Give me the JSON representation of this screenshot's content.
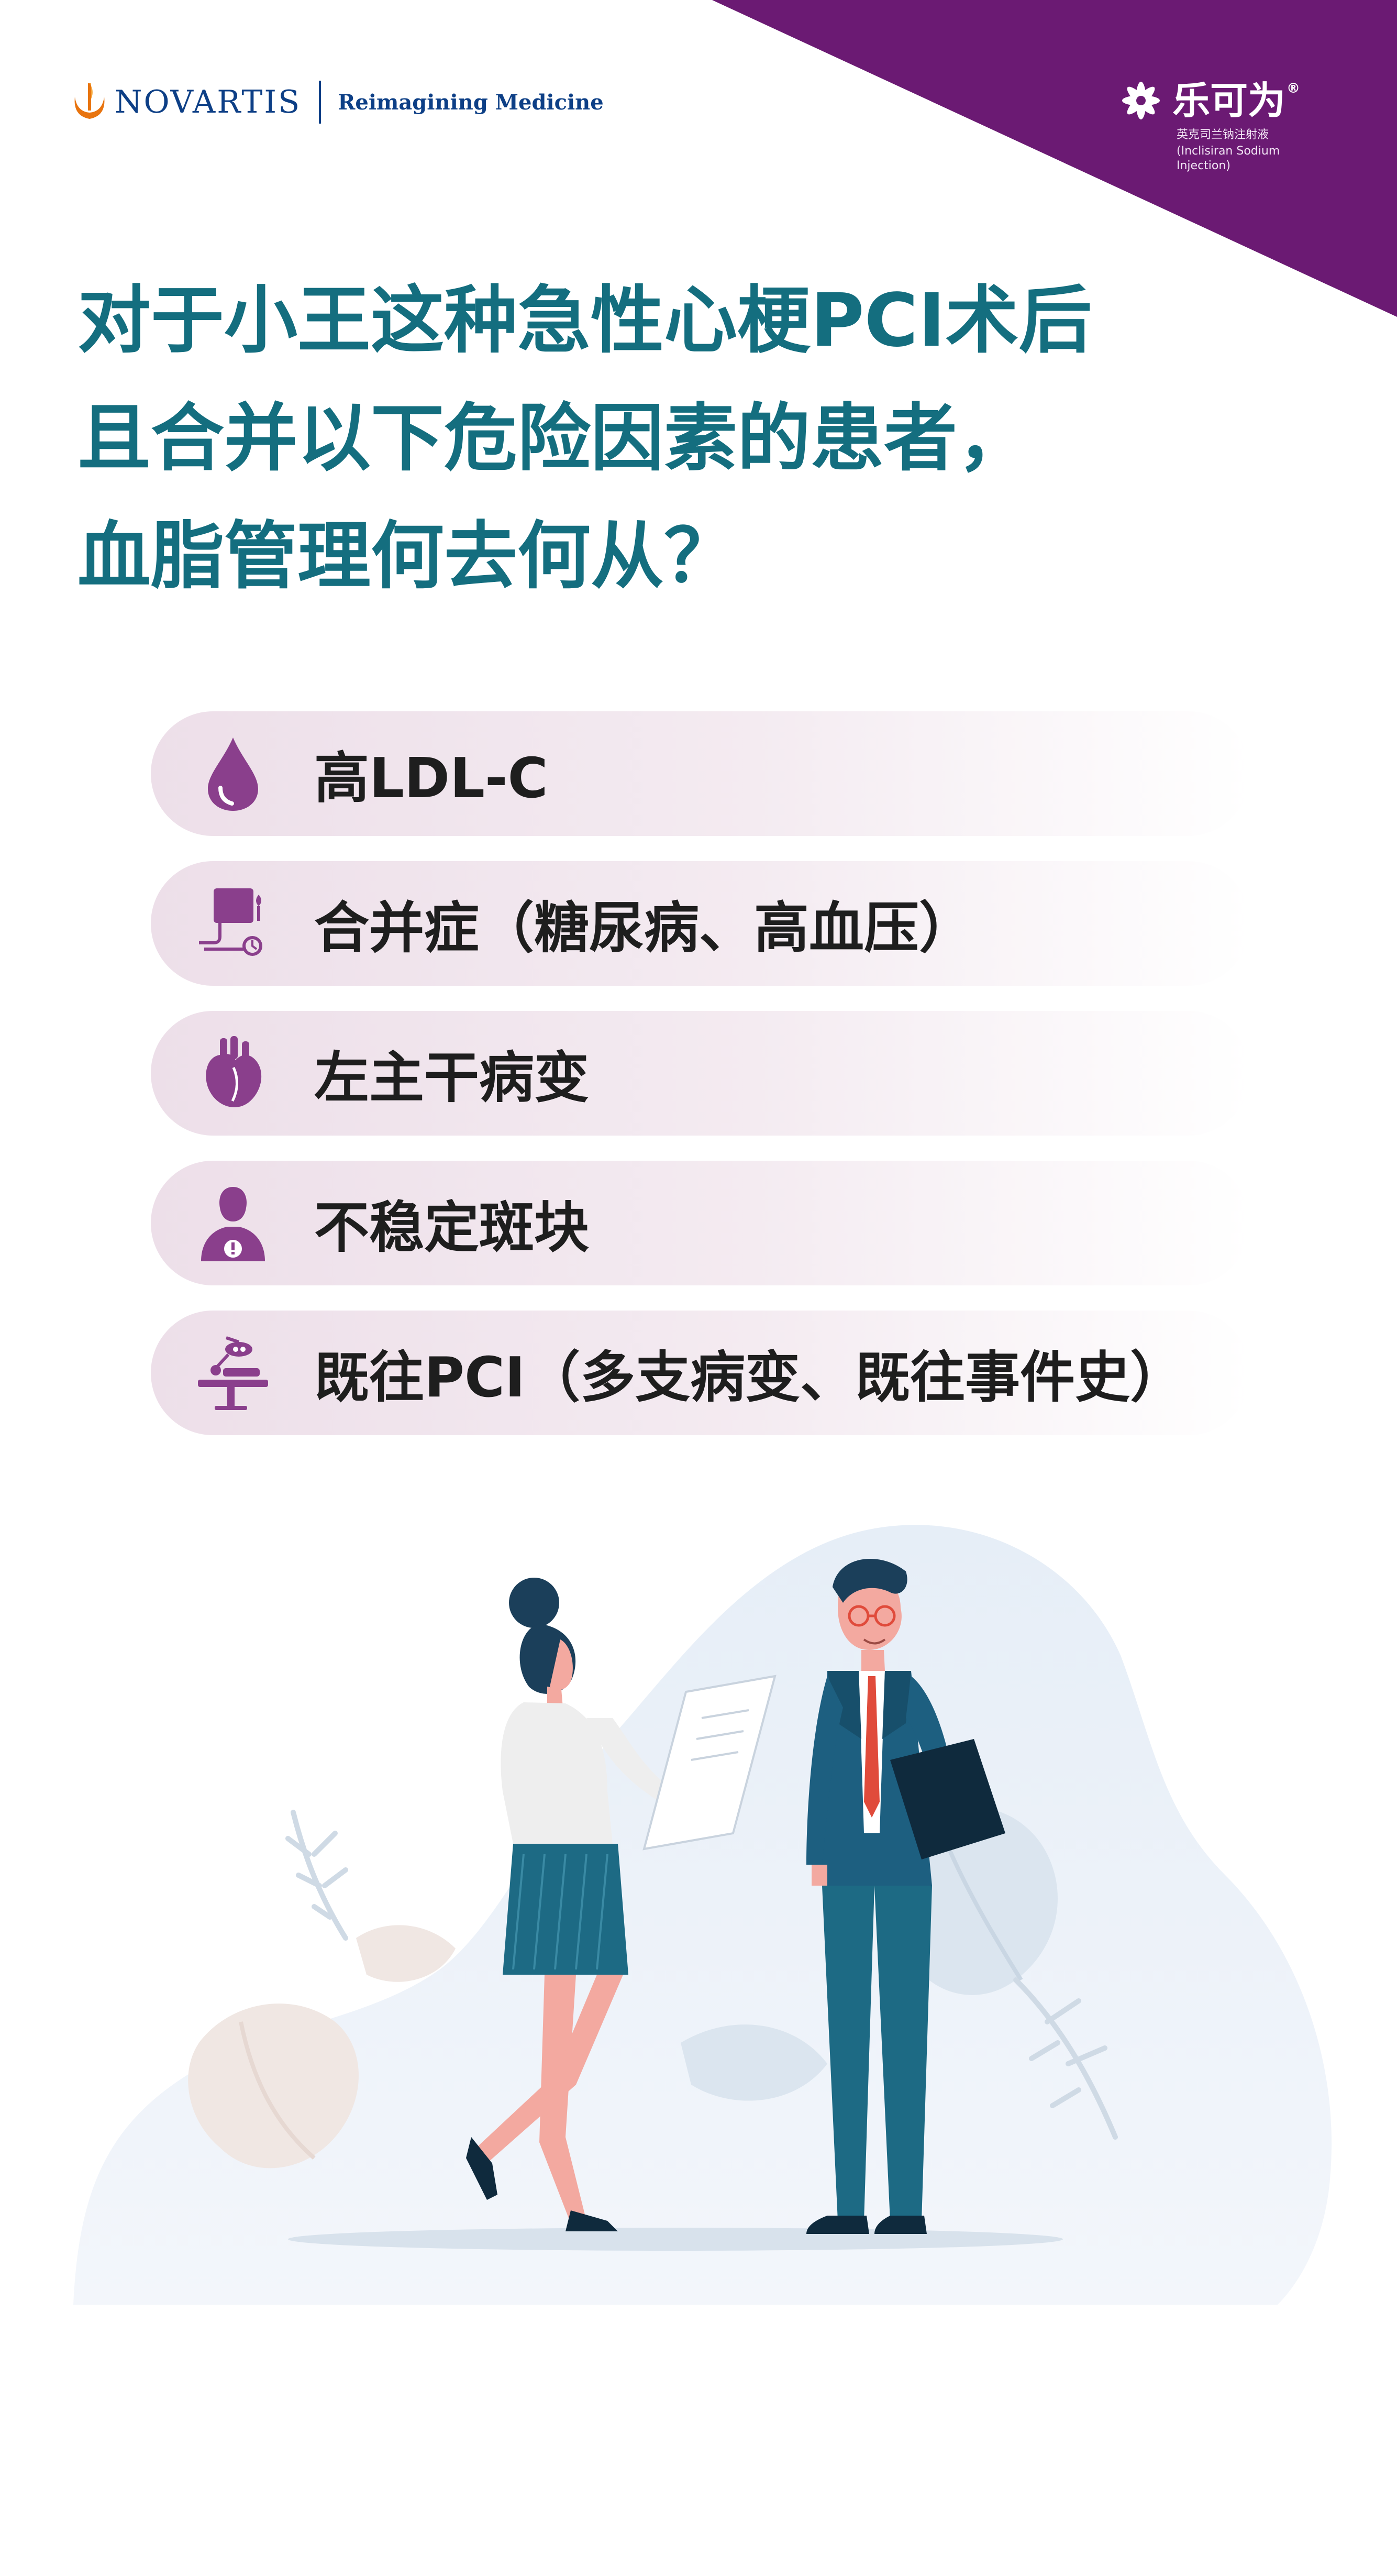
{
  "header": {
    "company": "NOVARTIS",
    "tagline": "Reimagining Medicine",
    "product": {
      "name": "乐可为",
      "registered": "®",
      "subtitle_cn": "英克司兰钠注射液",
      "subtitle_en": "(Inclisiran Sodium Injection)"
    }
  },
  "headline": {
    "line1": "对于小王这种急性心梗PCI术后",
    "line2": "且合并以下危险因素的患者，",
    "line3": "血脂管理何去何从？"
  },
  "risk_factors": [
    {
      "label": "高LDL-C",
      "icon": "blood-drop-icon"
    },
    {
      "label": "合并症（糖尿病、高血压）",
      "icon": "blood-pressure-monitor-icon"
    },
    {
      "label": "左主干病变",
      "icon": "heart-icon"
    },
    {
      "label": "不稳定斑块",
      "icon": "person-warning-icon"
    },
    {
      "label": "既往PCI（多支病变、既往事件史）",
      "icon": "operating-table-icon"
    }
  ],
  "colors": {
    "brand_purple": "#6b1a73",
    "headline_teal": "#146e7f",
    "icon_purple": "#8a3f8c",
    "pill_background": "#eddfe9",
    "novartis_blue": "#0d3f86",
    "novartis_orange": "#e8740f"
  },
  "illustration": "doctor-and-patient-illustration"
}
